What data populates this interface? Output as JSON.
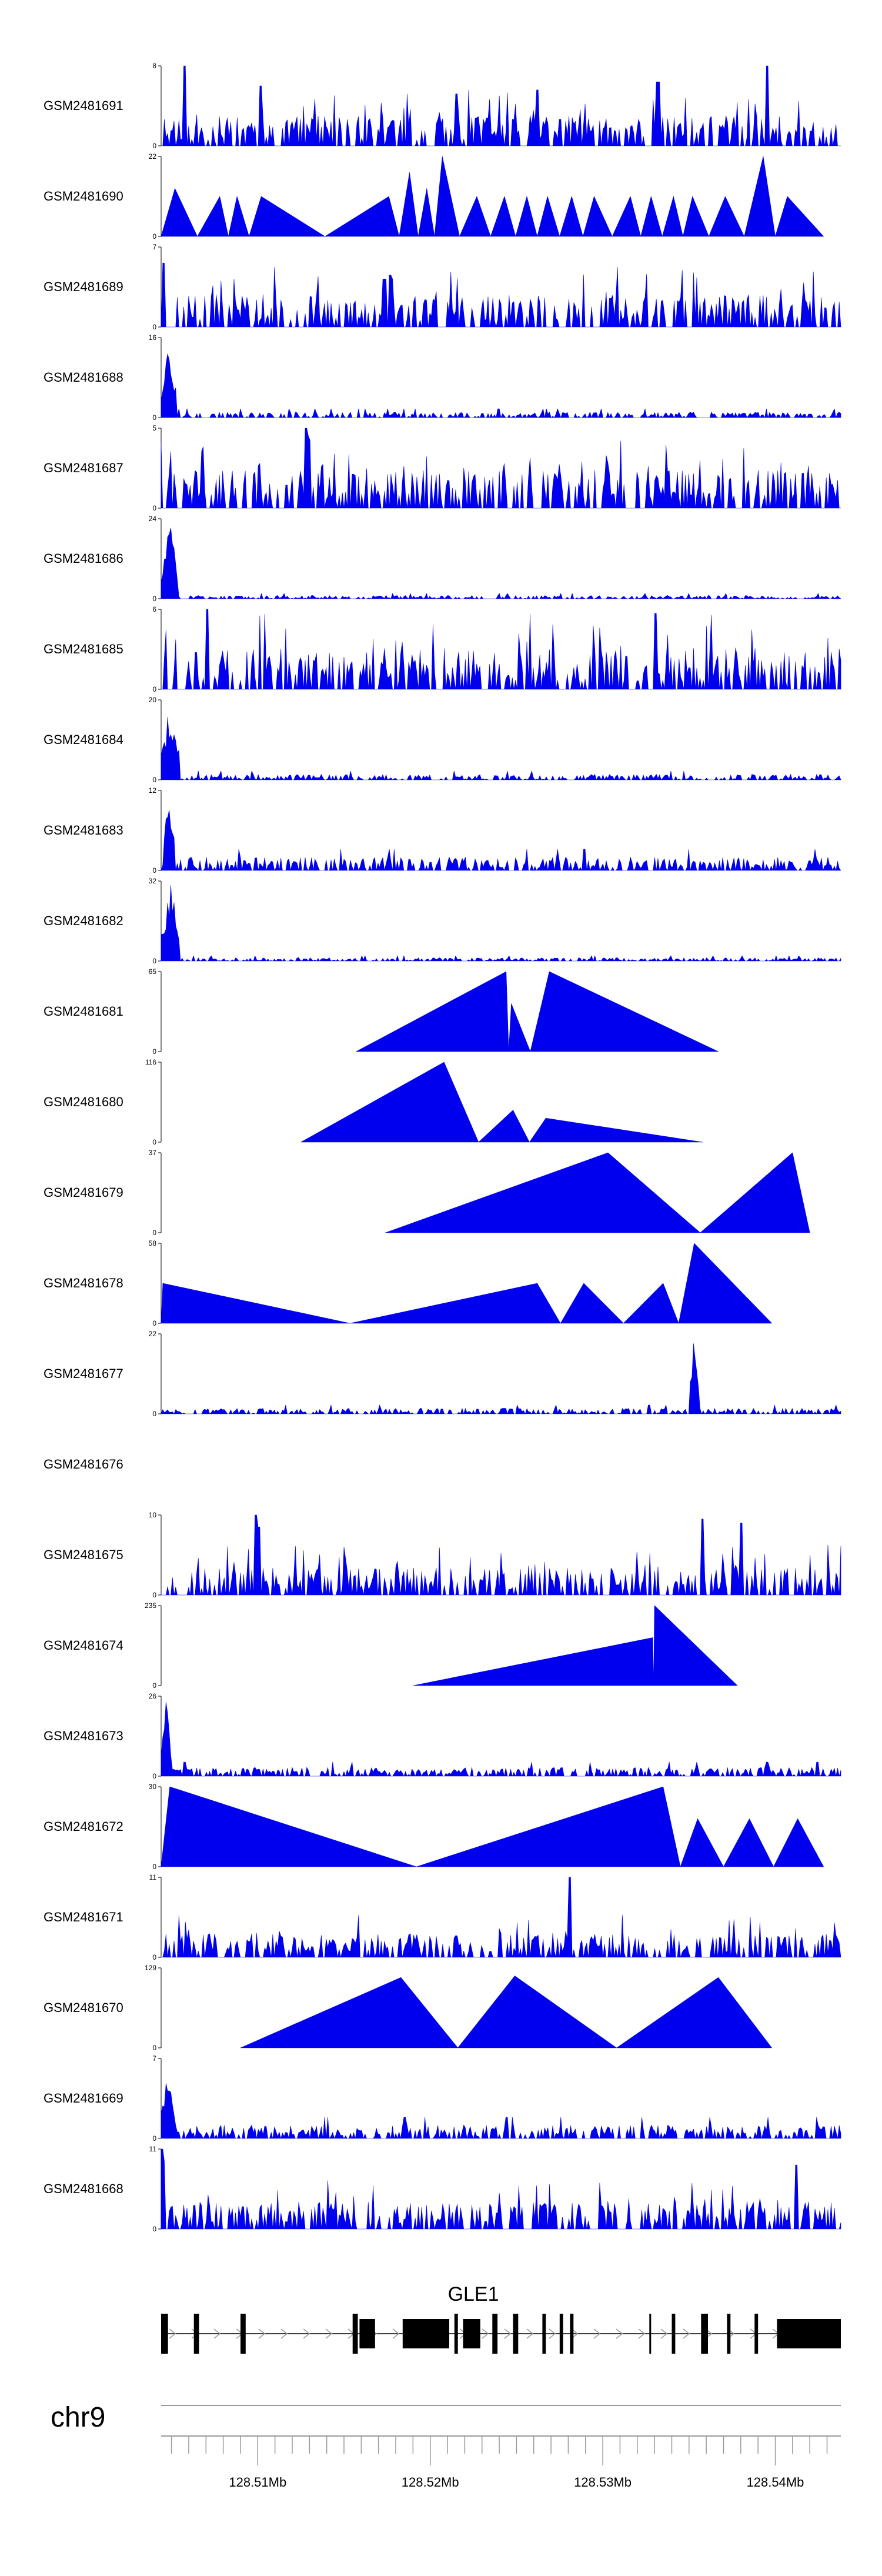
{
  "chart_data": {
    "type": "area",
    "fill_color": "#0000ee",
    "axis_color": "#000000",
    "gene_color": "#000000",
    "intron_arrow_color": "#999999",
    "chromosome": "chr9",
    "x_range": [
      128.5044,
      128.5438
    ],
    "x_ticks": [
      "128.51Mb",
      "128.52Mb",
      "128.53Mb",
      "128.54Mb"
    ],
    "x_tick_values": [
      128.51,
      128.52,
      128.53,
      128.54
    ],
    "gene": {
      "name": "GLE1",
      "exons": [
        [
          128.5044,
          128.5048
        ],
        [
          128.5063,
          128.5066
        ],
        [
          128.509,
          128.5093
        ],
        [
          128.5155,
          128.5158
        ],
        [
          128.5159,
          128.5168
        ],
        [
          128.5184,
          128.5211
        ],
        [
          128.5214,
          128.5216
        ],
        [
          128.5219,
          128.5229
        ],
        [
          128.5236,
          128.5239
        ],
        [
          128.5248,
          128.5251
        ],
        [
          128.5265,
          128.5267
        ],
        [
          128.5275,
          128.5277
        ],
        [
          128.5281,
          128.5283
        ],
        [
          128.5327,
          128.5328
        ],
        [
          128.534,
          128.5342
        ],
        [
          128.5357,
          128.5361
        ],
        [
          128.5372,
          128.5374
        ],
        [
          128.5388,
          128.539
        ],
        [
          128.5401,
          128.5438
        ]
      ]
    },
    "tracks": [
      {
        "name": "GSM2481691",
        "ymax": "8",
        "mode": "noisy",
        "seed": 11,
        "base": 0.28,
        "spikes": [
          [
            128.5058,
            1.0
          ],
          [
            128.5102,
            0.75
          ],
          [
            128.5395,
            1.0
          ],
          [
            128.5332,
            0.8
          ],
          [
            128.5215,
            0.65
          ],
          [
            128.5262,
            0.7
          ]
        ]
      },
      {
        "name": "GSM2481690",
        "ymax": "22",
        "mode": "peaks",
        "span": [
          128.5044,
          128.5428
        ],
        "peaks": [
          [
            128.5052,
            0.6
          ],
          [
            128.5078,
            0.5
          ],
          [
            128.5088,
            0.5
          ],
          [
            128.5102,
            0.5
          ],
          [
            128.5176,
            0.5
          ],
          [
            128.5188,
            0.8
          ],
          [
            128.5198,
            0.6
          ],
          [
            128.5207,
            1.0
          ],
          [
            128.5227,
            0.5
          ],
          [
            128.5243,
            0.5
          ],
          [
            128.5256,
            0.5
          ],
          [
            128.5268,
            0.5
          ],
          [
            128.5282,
            0.5
          ],
          [
            128.5295,
            0.5
          ],
          [
            128.5316,
            0.5
          ],
          [
            128.5328,
            0.5
          ],
          [
            128.5341,
            0.5
          ],
          [
            128.5352,
            0.5
          ],
          [
            128.5371,
            0.5
          ],
          [
            128.5393,
            1.0
          ],
          [
            128.5407,
            0.5
          ]
        ]
      },
      {
        "name": "GSM2481689",
        "ymax": "7",
        "mode": "noisy",
        "seed": 23,
        "base": 0.3,
        "spikes": [
          [
            128.5045,
            0.8
          ],
          [
            128.5177,
            0.65
          ],
          [
            128.5178,
            0.6
          ],
          [
            128.5178,
            0.6
          ],
          [
            128.5174,
            0.6
          ],
          [
            128.5173,
            0.6
          ],
          [
            128.5174,
            0.6
          ]
        ]
      },
      {
        "name": "GSM2481688",
        "ymax": "16",
        "mode": "burst",
        "seed": 37,
        "base": 0.05,
        "burst": [
          128.5044,
          128.5053,
          1.0
        ]
      },
      {
        "name": "GSM2481687",
        "ymax": "5",
        "mode": "noisy",
        "seed": 41,
        "base": 0.35,
        "spikes": [
          [
            128.5128,
            1.0
          ],
          [
            128.5129,
            0.9
          ],
          [
            128.513,
            0.85
          ]
        ]
      },
      {
        "name": "GSM2481686",
        "ymax": "24",
        "mode": "burst",
        "seed": 53,
        "base": 0.03,
        "burst": [
          128.5044,
          128.5054,
          1.0
        ]
      },
      {
        "name": "GSM2481685",
        "ymax": "6",
        "mode": "noisy",
        "seed": 59,
        "base": 0.38,
        "spikes": [
          [
            128.5071,
            1.0
          ],
          [
            128.5331,
            0.95
          ]
        ]
      },
      {
        "name": "GSM2481684",
        "ymax": "20",
        "mode": "burst",
        "seed": 67,
        "base": 0.05,
        "burst": [
          128.5044,
          128.5055,
          1.0
        ]
      },
      {
        "name": "GSM2481683",
        "ymax": "12",
        "mode": "burst",
        "seed": 71,
        "base": 0.12,
        "burst": [
          128.5045,
          128.5052,
          0.95
        ]
      },
      {
        "name": "GSM2481682",
        "ymax": "32",
        "mode": "burst",
        "seed": 79,
        "base": 0.03,
        "burst": [
          128.5044,
          128.5055,
          1.0
        ]
      },
      {
        "name": "GSM2481681",
        "ymax": "65",
        "mode": "peaks",
        "span": [
          128.5157,
          128.5367
        ],
        "peaks": [
          [
            128.5244,
            1.0
          ],
          [
            128.5247,
            0.6
          ],
          [
            128.5269,
            1.0
          ]
        ]
      },
      {
        "name": "GSM2481680",
        "ymax": "116",
        "mode": "peaks",
        "span": [
          128.5125,
          128.5358
        ],
        "peaks": [
          [
            128.5208,
            1.0
          ],
          [
            128.5248,
            0.4
          ],
          [
            128.5267,
            0.3
          ]
        ]
      },
      {
        "name": "GSM2481679",
        "ymax": "37",
        "mode": "peaks",
        "span": [
          128.5174,
          128.542
        ],
        "peaks": [
          [
            128.5303,
            1.0
          ],
          [
            128.541,
            1.0
          ]
        ]
      },
      {
        "name": "GSM2481678",
        "ymax": "58",
        "mode": "peaks",
        "span": [
          128.5044,
          128.5398
        ],
        "peaks": [
          [
            128.5045,
            0.5
          ],
          [
            128.5262,
            0.5
          ],
          [
            128.5289,
            0.5
          ],
          [
            128.5335,
            0.5
          ],
          [
            128.5353,
            1.0
          ]
        ]
      },
      {
        "name": "GSM2481677",
        "ymax": "22",
        "mode": "burst",
        "seed": 83,
        "base": 0.05,
        "burst": [
          128.535,
          128.5356,
          1.0
        ]
      },
      {
        "name": "GSM2481676",
        "ymax": "",
        "mode": "empty"
      },
      {
        "name": "GSM2481675",
        "ymax": "10",
        "mode": "noisy",
        "seed": 97,
        "base": 0.25,
        "spikes": [
          [
            128.5099,
            1.0
          ],
          [
            128.5101,
            0.85
          ],
          [
            128.5358,
            0.95
          ],
          [
            128.538,
            0.9
          ]
        ]
      },
      {
        "name": "GSM2481674",
        "ymax": "235",
        "mode": "peaks",
        "span": [
          128.519,
          128.5378
        ],
        "peaks": [
          [
            128.5329,
            0.6
          ],
          [
            128.533,
            1.0
          ]
        ]
      },
      {
        "name": "GSM2481673",
        "ymax": "26",
        "mode": "burst",
        "seed": 103,
        "base": 0.08,
        "burst": [
          128.5044,
          128.505,
          1.0
        ]
      },
      {
        "name": "GSM2481672",
        "ymax": "30",
        "mode": "peaks",
        "span": [
          128.5044,
          128.5428
        ],
        "peaks": [
          [
            128.5049,
            1.0
          ],
          [
            128.5335,
            1.0
          ],
          [
            128.5355,
            0.6
          ],
          [
            128.5385,
            0.6
          ],
          [
            128.5413,
            0.6
          ]
        ]
      },
      {
        "name": "GSM2481671",
        "ymax": "11",
        "mode": "noisy",
        "seed": 113,
        "base": 0.22,
        "spikes": [
          [
            128.5281,
            1.0
          ]
        ]
      },
      {
        "name": "GSM2481670",
        "ymax": "129",
        "mode": "peaks",
        "span": [
          128.509,
          128.5398
        ],
        "peaks": [
          [
            128.5183,
            0.88
          ],
          [
            128.5249,
            0.9
          ],
          [
            128.5367,
            0.88
          ]
        ]
      },
      {
        "name": "GSM2481669",
        "ymax": "7",
        "mode": "burst",
        "seed": 127,
        "base": 0.12,
        "burst": [
          128.5044,
          128.5052,
          1.0
        ]
      },
      {
        "name": "GSM2481668",
        "ymax": "11",
        "mode": "noisy",
        "seed": 131,
        "base": 0.25,
        "spikes": [
          [
            128.5044,
            1.0
          ],
          [
            128.5045,
            0.85
          ],
          [
            128.5412,
            0.8
          ]
        ]
      }
    ]
  }
}
